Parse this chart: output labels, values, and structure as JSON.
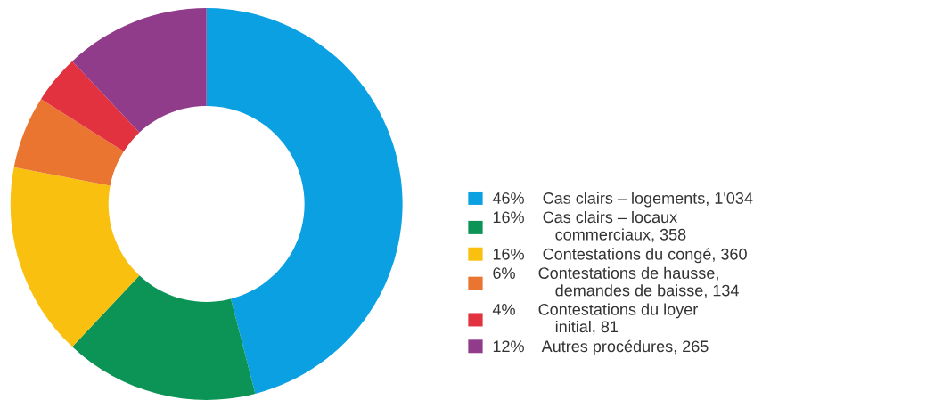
{
  "chart_data": {
    "type": "donut",
    "categories": [
      "Cas clairs – logements, 1'034",
      "Cas clairs – locaux\ncommerciaux, 358",
      "Contestations du congé, 360",
      "Contestations de hausse,\ndemandes de baisse, 134",
      "Contestations du loyer\ninitial, 81",
      "Autres procédures, 265"
    ],
    "values": [
      46,
      16,
      16,
      6,
      4,
      12
    ],
    "value_labels": [
      "46%",
      "16%",
      "16%",
      "6%",
      "4%",
      "12%"
    ],
    "colors": [
      "#0ba0e2",
      "#0b9455",
      "#fac010",
      "#ea7530",
      "#e3323f",
      "#913c8a"
    ],
    "legend": "right"
  }
}
